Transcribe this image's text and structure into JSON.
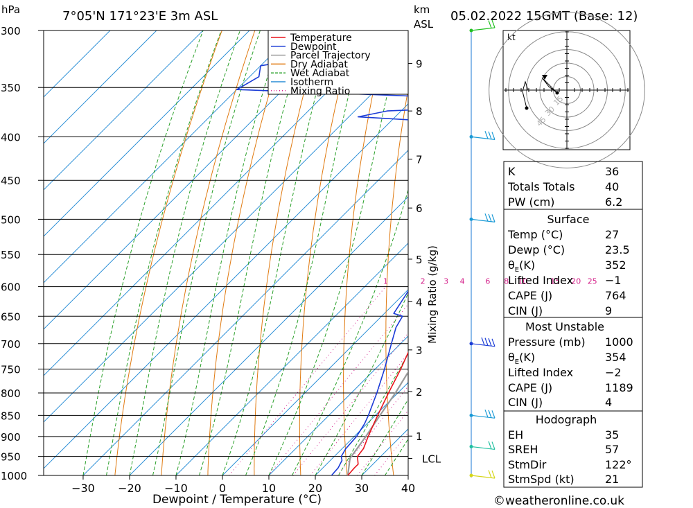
{
  "header": {
    "y_unit": "hPa",
    "location": "7°05'N 171°23'E 3m ASL",
    "km_unit": "km",
    "km_unit2": "ASL",
    "run": "05.02.2022 15GMT (Base: 12)"
  },
  "chart_data": {
    "type": "line",
    "subtype": "skew-T log-P",
    "xlabel": "Dewpoint / Temperature (°C)",
    "right_axis_label": "Mixing Ratio (g/kg)",
    "x_ticks": [
      -30,
      -20,
      -10,
      0,
      10,
      20,
      30,
      40
    ],
    "p_levels": [
      300,
      350,
      400,
      450,
      500,
      550,
      600,
      650,
      700,
      750,
      800,
      850,
      900,
      950,
      1000
    ],
    "xlim_at_1000hPa": [
      -38.5,
      40
    ],
    "km_ticks": [
      {
        "label": "9",
        "p": 328
      },
      {
        "label": "8",
        "p": 373
      },
      {
        "label": "7",
        "p": 425
      },
      {
        "label": "6",
        "p": 485
      },
      {
        "label": "5",
        "p": 557
      },
      {
        "label": "4",
        "p": 625
      },
      {
        "label": "3",
        "p": 712
      },
      {
        "label": "2",
        "p": 797
      },
      {
        "label": "1",
        "p": 899
      },
      {
        "label": "LCL",
        "p": 955
      }
    ],
    "mixing_ratio_labels": [
      "1",
      "2",
      "3",
      "4",
      "6",
      "8",
      "10",
      "15",
      "20",
      "25"
    ],
    "mixing_ratio_label_temps": [
      -5.5,
      2.5,
      7.5,
      11,
      16.5,
      20.5,
      24,
      31,
      35.5,
      39
    ],
    "legend": [
      {
        "name": "Temperature",
        "color": "#e8141c"
      },
      {
        "name": "Dewpoint",
        "color": "#1a3bd6"
      },
      {
        "name": "Parcel Trajectory",
        "color": "#9a9a9a"
      },
      {
        "name": "Dry Adiabat",
        "color": "#e07a10"
      },
      {
        "name": "Wet Adiabat",
        "color": "#2aa02a"
      },
      {
        "name": "Isotherm",
        "color": "#2a8ed6"
      },
      {
        "name": "Mixing Ratio",
        "color": "#d4208a"
      }
    ],
    "series": [
      {
        "name": "Temperature",
        "points": [
          [
            1000,
            27
          ],
          [
            980,
            26.8
          ],
          [
            970,
            26.8
          ],
          [
            950,
            25
          ],
          [
            930,
            24.6
          ],
          [
            900,
            23
          ],
          [
            870,
            21.5
          ],
          [
            850,
            20.5
          ],
          [
            800,
            18
          ],
          [
            750,
            15.5
          ],
          [
            700,
            12.5
          ],
          [
            650,
            9.5
          ],
          [
            600,
            6
          ],
          [
            575,
            4
          ],
          [
            550,
            1.5
          ],
          [
            525,
            -1
          ],
          [
            500,
            -3.5
          ],
          [
            475,
            -6.5
          ],
          [
            450,
            -9.5
          ],
          [
            425,
            -13
          ],
          [
            400,
            -17
          ],
          [
            390,
            -18.5
          ],
          [
            375,
            -21
          ],
          [
            350,
            -25.5
          ],
          [
            325,
            -31
          ],
          [
            310,
            -34
          ],
          [
            300,
            -37
          ]
        ]
      },
      {
        "name": "Dewpoint",
        "points": [
          [
            1000,
            23.5
          ],
          [
            980,
            23.3
          ],
          [
            960,
            22.5
          ],
          [
            950,
            21.5
          ],
          [
            930,
            20.8
          ],
          [
            900,
            20.5
          ],
          [
            870,
            19.5
          ],
          [
            850,
            18.5
          ],
          [
            800,
            15.5
          ],
          [
            750,
            12
          ],
          [
            700,
            8
          ],
          [
            670,
            5.5
          ],
          [
            650,
            4.5
          ],
          [
            645,
            2
          ],
          [
            600,
            0
          ],
          [
            575,
            -2
          ],
          [
            550,
            -4.5
          ],
          [
            535,
            -5
          ],
          [
            525,
            -4
          ],
          [
            510,
            -5
          ],
          [
            500,
            -7.5
          ],
          [
            480,
            -9
          ],
          [
            470,
            -9
          ],
          [
            455,
            -11
          ],
          [
            450,
            -13
          ],
          [
            430,
            -16
          ],
          [
            425,
            -18.5
          ],
          [
            415,
            -21
          ],
          [
            410,
            -21.5
          ],
          [
            405,
            -27
          ],
          [
            400,
            -30
          ],
          [
            396,
            -31
          ],
          [
            393,
            -22
          ],
          [
            385,
            -25
          ],
          [
            379,
            -48
          ],
          [
            373,
            -43
          ],
          [
            368,
            -18
          ],
          [
            360,
            -30
          ],
          [
            352,
            -80
          ],
          [
            340,
            -78
          ],
          [
            330,
            -80
          ],
          [
            310,
            -53
          ],
          [
            302,
            -49
          ],
          [
            300,
            -50
          ]
        ]
      },
      {
        "name": "Parcel Trajectory",
        "points": [
          [
            1000,
            27
          ],
          [
            955,
            23.8
          ],
          [
            900,
            22.5
          ],
          [
            850,
            21
          ],
          [
            800,
            19.5
          ],
          [
            750,
            17.5
          ],
          [
            700,
            15.5
          ],
          [
            650,
            13
          ],
          [
            600,
            10.5
          ],
          [
            550,
            7
          ],
          [
            500,
            3
          ],
          [
            450,
            -2
          ],
          [
            400,
            -8
          ],
          [
            375,
            -12
          ],
          [
            350,
            -17
          ],
          [
            330,
            -21
          ]
        ]
      }
    ]
  },
  "wind_barbs": [
    {
      "p": 300,
      "color": "#22c022",
      "dir": "NE",
      "speed_kt": 10
    },
    {
      "p": 400,
      "color": "#1a9ad6",
      "dir": "E",
      "speed_kt": 15
    },
    {
      "p": 500,
      "color": "#1a9ad6",
      "dir": "E",
      "speed_kt": 15
    },
    {
      "p": 700,
      "color": "#1a3bd6",
      "dir": "E",
      "speed_kt": 20
    },
    {
      "p": 850,
      "color": "#1a9ad6",
      "dir": "E",
      "speed_kt": 15
    },
    {
      "p": 925,
      "color": "#22c0a0",
      "dir": "E",
      "speed_kt": 10
    },
    {
      "p": 1000,
      "color": "#d6d61a",
      "dir": "E",
      "speed_kt": 10
    }
  ],
  "hodograph": {
    "unit": "kt",
    "ring_labels": [
      "15",
      "30",
      "45"
    ],
    "points": [
      [
        0,
        0
      ],
      [
        -1.5,
        0
      ],
      [
        -3,
        -0.3
      ],
      [
        -12,
        0
      ],
      [
        -14,
        6
      ],
      [
        -15,
        25
      ]
    ],
    "storm_motion_marker": [
      -8,
      4
    ],
    "ring_label_color": "#b0b0b0"
  },
  "indices": {
    "k_label": "K",
    "k": "36",
    "tt_label": "Totals Totals",
    "tt": "40",
    "pw_label": "PW (cm)",
    "pw": "6.2"
  },
  "surface": {
    "title": "Surface",
    "temp_label": "Temp (°C)",
    "temp": "27",
    "dewp_label": "Dewp (°C)",
    "dewp": "23.5",
    "theta_sym": "θ",
    "theta_sub": "E",
    "theta_unit": "(K)",
    "theta_e": "352",
    "li_label": "Lifted Index",
    "li": "−1",
    "cape_label": "CAPE (J)",
    "cape": "764",
    "cin_label": "CIN (J)",
    "cin": "9"
  },
  "most_unstable": {
    "title": "Most Unstable",
    "pressure_label": "Pressure (mb)",
    "pressure": "1000",
    "theta_sym": "θ",
    "theta_sub": "E",
    "theta_unit": "(K)",
    "theta_e": "354",
    "li_label": "Lifted Index",
    "li": "−2",
    "cape_label": "CAPE (J)",
    "cape": "1189",
    "cin_label": "CIN (J)",
    "cin": "4"
  },
  "hodo_stats": {
    "title": "Hodograph",
    "eh_label": "EH",
    "eh": "35",
    "sreh_label": "SREH",
    "sreh": "57",
    "stmdir_label": "StmDir",
    "stmdir": "122°",
    "stmspd_label": "StmSpd (kt)",
    "stmspd": "21"
  },
  "footer": {
    "credit": "©weatheronline.co.uk"
  }
}
